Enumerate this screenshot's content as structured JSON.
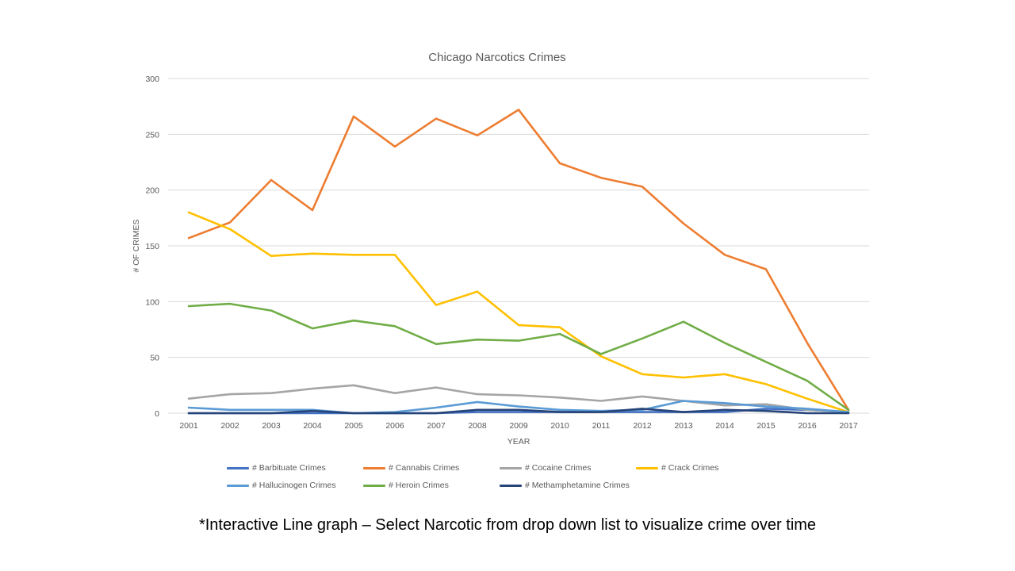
{
  "caption": "*Interactive Line graph – Select Narcotic from drop down list to visualize crime over time",
  "colors": {
    "background": "#ffffff",
    "gridline": "#d9d9d9",
    "axis_text": "#595959",
    "title_text": "#595959"
  },
  "chart_data": {
    "type": "line",
    "title": "Chicago Narcotics Crimes",
    "xlabel": "YEAR",
    "ylabel": "# OF CRIMES",
    "ylim": [
      0,
      300
    ],
    "yticks": [
      0,
      50,
      100,
      150,
      200,
      250,
      300
    ],
    "grid": true,
    "legend_position": "bottom",
    "x": [
      "2001",
      "2002",
      "2003",
      "2004",
      "2005",
      "2006",
      "2007",
      "2008",
      "2009",
      "2010",
      "2011",
      "2012",
      "2013",
      "2014",
      "2015",
      "2016",
      "2017"
    ],
    "series": [
      {
        "name": "# Barbituate Crimes",
        "color": "#4472c4",
        "values": [
          0,
          0,
          0,
          0,
          0,
          0,
          0,
          1,
          1,
          1,
          1,
          1,
          1,
          1,
          4,
          3,
          1
        ]
      },
      {
        "name": "# Cannabis Crimes",
        "color": "#ed7d31",
        "values": [
          157,
          171,
          209,
          182,
          266,
          239,
          264,
          249,
          272,
          224,
          211,
          203,
          170,
          142,
          129,
          63,
          3
        ]
      },
      {
        "name": "# Cocaine Crimes",
        "color": "#a5a5a5",
        "values": [
          13,
          17,
          18,
          22,
          25,
          18,
          23,
          17,
          16,
          14,
          11,
          15,
          11,
          7,
          8,
          3,
          1
        ]
      },
      {
        "name": "# Crack Crimes",
        "color": "#ffc000",
        "values": [
          180,
          165,
          141,
          143,
          142,
          142,
          97,
          109,
          79,
          77,
          51,
          35,
          32,
          35,
          26,
          13,
          1
        ]
      },
      {
        "name": "# Hallucinogen Crimes",
        "color": "#5b9bd5",
        "values": [
          5,
          3,
          3,
          3,
          0,
          1,
          5,
          10,
          6,
          3,
          2,
          3,
          11,
          9,
          6,
          4,
          1
        ]
      },
      {
        "name": "# Heroin Crimes",
        "color": "#70ad47",
        "values": [
          96,
          98,
          92,
          76,
          83,
          78,
          62,
          66,
          65,
          71,
          53,
          67,
          82,
          63,
          46,
          29,
          3
        ]
      },
      {
        "name": "# Methamphetamine Crimes",
        "color": "#264478",
        "values": [
          0,
          0,
          0,
          2,
          0,
          0,
          0,
          3,
          3,
          1,
          1,
          4,
          1,
          3,
          2,
          0,
          0
        ]
      }
    ]
  }
}
